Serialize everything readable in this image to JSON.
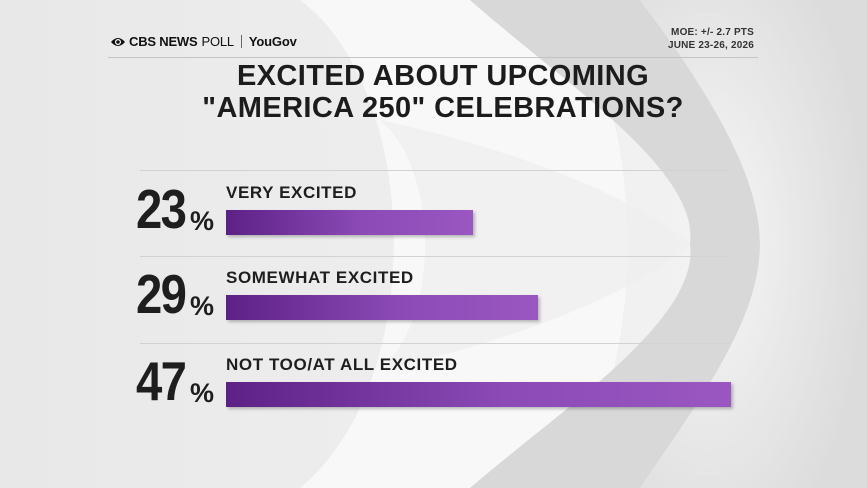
{
  "header": {
    "brand": "CBS NEWS",
    "poll_word": "POLL",
    "partner": "YouGov",
    "moe": "MOE: +/- 2.7 PTS",
    "dates": "JUNE 23-26, 2026"
  },
  "colors": {
    "bar": "#7a3aa6",
    "text": "#1e1e1e",
    "background": "#e9e9e9"
  },
  "chart_data": {
    "type": "bar",
    "orientation": "horizontal",
    "title_line1": "EXCITED ABOUT UPCOMING",
    "title_line2": "\"AMERICA 250\" CELEBRATIONS?",
    "categories": [
      "VERY EXCITED",
      "SOMEWHAT EXCITED",
      "NOT TOO/AT ALL EXCITED"
    ],
    "values": [
      23,
      29,
      47
    ],
    "value_labels": [
      "23",
      "29",
      "47"
    ],
    "unit": "%",
    "xlim": [
      0,
      47
    ]
  }
}
